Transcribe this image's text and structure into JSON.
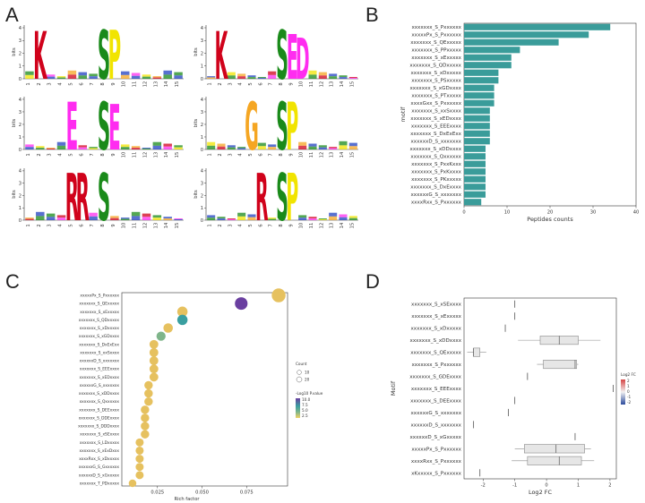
{
  "panels": {
    "a": "A",
    "b": "B",
    "c": "C",
    "d": "D"
  },
  "chart_data": [
    {
      "type": "sequence-logo",
      "panel": "A",
      "ylabel": "bits",
      "yticks": [
        "0",
        "1",
        "2",
        "3",
        "4"
      ],
      "xticks": [
        "1",
        "2",
        "3",
        "4",
        "5",
        "6",
        "7",
        "8",
        "9",
        "10",
        "11",
        "12",
        "13",
        "14",
        "15"
      ],
      "logos": [
        {
          "motif": [
            {
              "pos": 2,
              "letter": "K",
              "bits": 3.7,
              "color": "#d0021b"
            },
            {
              "pos": 8,
              "letter": "S",
              "bits": 3.8,
              "color": "#1a8a1a"
            },
            {
              "pos": 9,
              "letter": "P",
              "bits": 3.8,
              "color": "#f1e400"
            }
          ]
        },
        {
          "motif": [
            {
              "pos": 2,
              "letter": "K",
              "bits": 3.7,
              "color": "#d0021b"
            },
            {
              "pos": 8,
              "letter": "S",
              "bits": 3.8,
              "color": "#1a8a1a"
            },
            {
              "pos": 9,
              "letter": "E",
              "bits": 3.5,
              "color": "#ff2cf0"
            },
            {
              "pos": 10,
              "letter": "D",
              "bits": 3.2,
              "color": "#ff2cf0"
            }
          ]
        },
        {
          "motif": [
            {
              "pos": 5,
              "letter": "E",
              "bits": 3.8,
              "color": "#ff2cf0"
            },
            {
              "pos": 8,
              "letter": "S",
              "bits": 3.8,
              "color": "#1a8a1a"
            },
            {
              "pos": 9,
              "letter": "E",
              "bits": 3.6,
              "color": "#ff2cf0"
            }
          ]
        },
        {
          "motif": [
            {
              "pos": 5,
              "letter": "G",
              "bits": 3.8,
              "color": "#f5a623"
            },
            {
              "pos": 8,
              "letter": "S",
              "bits": 3.8,
              "color": "#1a8a1a"
            },
            {
              "pos": 9,
              "letter": "P",
              "bits": 3.8,
              "color": "#f1e400"
            }
          ]
        },
        {
          "motif": [
            {
              "pos": 5,
              "letter": "R",
              "bits": 3.8,
              "color": "#d0021b"
            },
            {
              "pos": 6,
              "letter": "R",
              "bits": 3.8,
              "color": "#d0021b"
            },
            {
              "pos": 8,
              "letter": "S",
              "bits": 3.8,
              "color": "#1a8a1a"
            }
          ]
        },
        {
          "motif": [
            {
              "pos": 6,
              "letter": "R",
              "bits": 3.8,
              "color": "#d0021b"
            },
            {
              "pos": 8,
              "letter": "S",
              "bits": 3.8,
              "color": "#1a8a1a"
            },
            {
              "pos": 9,
              "letter": "P",
              "bits": 3.8,
              "color": "#f1e400"
            }
          ]
        }
      ]
    },
    {
      "type": "bar",
      "panel": "B",
      "orientation": "horizontal",
      "xlabel": "Peptides counts",
      "ylabel": "motif",
      "xlim": [
        0,
        40
      ],
      "xticks": [
        "0",
        "10",
        "20",
        "30",
        "40"
      ],
      "color": "#3a9c9a",
      "categories": [
        "xxxxxxx_S_Pxxxxxx",
        "xxxxxPx_S_Pxxxxxx",
        "xxxxxxx_S_QExxxxx",
        "xxxxxxx_S_PPxxxxx",
        "xxxxxxx_S_xExxxxx",
        "xxxxxxx_S_QDxxxxx",
        "xxxxxxx_S_xDxxxxx",
        "xxxxxxx_S_PSxxxxx",
        "xxxxxxx_S_xGDxxxx",
        "xxxxxxx_S_PTxxxxx",
        "xxxxGxx_S_Pxxxxxx",
        "xxxxxxx_S_xxSxxxx",
        "xxxxxxx_S_xEDxxxx",
        "xxxxxxx_S_EEExxxx",
        "xxxxxxx_S_DxExExx",
        "xxxxxxD_S_xxxxxxx",
        "xxxxxxx_S_xDDxxxx",
        "xxxxxxx_S_Qxxxxxx",
        "xxxxxxx_S_PxxKxxx",
        "xxxxxxx_S_PxKxxxx",
        "xxxxxxx_S_PKxxxxx",
        "xxxxxxx_S_DxExxxx",
        "xxxxxxG_S_xxxxxxx",
        "xxxxRxx_S_Pxxxxxx"
      ],
      "values": [
        34,
        29,
        22,
        13,
        11,
        11,
        8,
        8,
        7,
        7,
        7,
        6,
        6,
        6,
        6,
        6,
        5,
        5,
        5,
        5,
        5,
        5,
        5,
        4
      ]
    },
    {
      "type": "scatter",
      "panel": "C",
      "xlabel": "Rich factor",
      "xticks": [
        "0.025",
        "0.050",
        "0.075"
      ],
      "xlim": [
        0.005,
        0.098
      ],
      "legend": {
        "size_title": "Count",
        "sizes": [
          "10",
          "20"
        ],
        "color_title": "-Log10 P.value",
        "color_ticks": [
          "10.0",
          "7.5",
          "5.0",
          "2.5"
        ],
        "placement": "right"
      },
      "categories": [
        "xxxxxPx_S_Pxxxxxx",
        "xxxxxxx_S_QExxxxx",
        "xxxxxxx_S_xExxxxx",
        "xxxxxxx_S_QDxxxxx",
        "xxxxxxx_S_xDxxxxx",
        "xxxxxxx_S_xGDxxxx",
        "xxxxxxx_S_DxExExx",
        "xxxxxxx_S_xxSxxxx",
        "xxxxxxD_S_xxxxxxx",
        "xxxxxxx_S_EEExxxx",
        "xxxxxxx_S_xEDxxxx",
        "xxxxxxG_S_xxxxxxx",
        "xxxxxxx_S_xDDxxxx",
        "xxxxxxx_S_Qxxxxxx",
        "xxxxxxx_S_DEExxxx",
        "xxxxxxx_S_DDExxxx",
        "xxxxxxx_S_DDDxxxx",
        "xxxxxxx_S_xSExxxx",
        "xxxxxxx_S_LDxxxxx",
        "xxxxxxx_S_xExDxxx",
        "xxxxRxx_S_xDxxxxx",
        "xxxxxxG_S_Gxxxxxx",
        "xxxxxxD_S_xGxxxxx",
        "xxxxxxx_T_PDxxxxx"
      ],
      "x": [
        0.093,
        0.072,
        0.039,
        0.039,
        0.031,
        0.027,
        0.023,
        0.023,
        0.023,
        0.023,
        0.023,
        0.02,
        0.02,
        0.02,
        0.018,
        0.018,
        0.018,
        0.018,
        0.015,
        0.015,
        0.015,
        0.015,
        0.015,
        0.011
      ],
      "count": [
        29,
        22,
        11,
        11,
        8,
        7,
        6,
        6,
        6,
        6,
        6,
        5,
        5,
        5,
        5,
        5,
        5,
        5,
        4,
        4,
        4,
        4,
        4,
        3
      ],
      "neglog10p": [
        2.0,
        10.5,
        2.0,
        6.5,
        2.0,
        4.5,
        2.0,
        2.0,
        2.0,
        2.0,
        2.0,
        2.0,
        2.0,
        2.0,
        2.0,
        2.0,
        2.0,
        2.0,
        2.0,
        2.0,
        2.0,
        2.0,
        2.0,
        2.0
      ]
    },
    {
      "type": "boxplot",
      "panel": "D",
      "xlabel": "Log2 FC",
      "ylabel": "Motif",
      "xlim": [
        -2.6,
        2.2
      ],
      "xticks": [
        "-2",
        "-1",
        "0",
        "1",
        "2"
      ],
      "legend": {
        "title": "Log2 FC",
        "ticks": [
          "2",
          "1",
          "0",
          "-1",
          "-2"
        ],
        "placement": "right"
      },
      "categories": [
        "xxxxxxx_S_xSExxxx",
        "xxxxxxx_S_xExxxxx",
        "xxxxxxx_S_xDxxxxx",
        "xxxxxxx_S_xDDxxxx",
        "xxxxxxx_S_QExxxxx",
        "xxxxxxx_S_Pxxxxxx",
        "xxxxxxx_S_GDExxxx",
        "xxxxxxx_S_EEExxxx",
        "xxxxxxx_S_DEExxxx",
        "xxxxxxG_S_xxxxxxx",
        "xxxxxxD_S_xxxxxxx",
        "xxxxxxD_S_xGxxxxx",
        "xxxxxPx_S_Pxxxxxx",
        "xxxxRxx_S_Pxxxxxx",
        "xKxxxxx_S_Pxxxxxx"
      ],
      "boxes": [
        {
          "min": -1.0,
          "q1": -1.0,
          "median": -1.0,
          "q3": -1.0,
          "max": -1.0
        },
        {
          "min": -1.0,
          "q1": -1.0,
          "median": -1.0,
          "q3": -1.0,
          "max": -1.0
        },
        {
          "min": -1.3,
          "q1": -1.3,
          "median": -1.3,
          "q3": -1.3,
          "max": -1.3
        },
        {
          "min": -0.9,
          "q1": -0.2,
          "median": 0.4,
          "q3": 1.0,
          "max": 1.7
        },
        {
          "min": -2.5,
          "q1": -2.3,
          "median": -2.3,
          "q3": -2.1,
          "max": -1.9
        },
        {
          "min": -0.3,
          "q1": -0.1,
          "median": 0.9,
          "q3": 0.95,
          "max": 1.0
        },
        {
          "min": -0.6,
          "q1": -0.6,
          "median": -0.6,
          "q3": -0.6,
          "max": -0.6
        },
        {
          "min": 2.1,
          "q1": 2.1,
          "median": 2.1,
          "q3": 2.1,
          "max": 2.1
        },
        {
          "min": -1.0,
          "q1": -1.0,
          "median": -1.0,
          "q3": -1.0,
          "max": -1.0
        },
        {
          "min": -1.2,
          "q1": -1.2,
          "median": -1.2,
          "q3": -1.2,
          "max": -1.2
        },
        {
          "min": -2.3,
          "q1": -2.3,
          "median": -2.3,
          "q3": -2.3,
          "max": -2.3
        },
        {
          "min": 0.9,
          "q1": 0.9,
          "median": 0.9,
          "q3": 0.9,
          "max": 0.9
        },
        {
          "min": -1.0,
          "q1": -0.7,
          "median": 0.3,
          "q3": 1.2,
          "max": 1.4
        },
        {
          "min": -1.1,
          "q1": -0.6,
          "median": 0.4,
          "q3": 1.1,
          "max": 1.5
        },
        {
          "min": -2.1,
          "q1": -2.1,
          "median": -2.1,
          "q3": -2.1,
          "max": -2.1
        }
      ]
    }
  ]
}
